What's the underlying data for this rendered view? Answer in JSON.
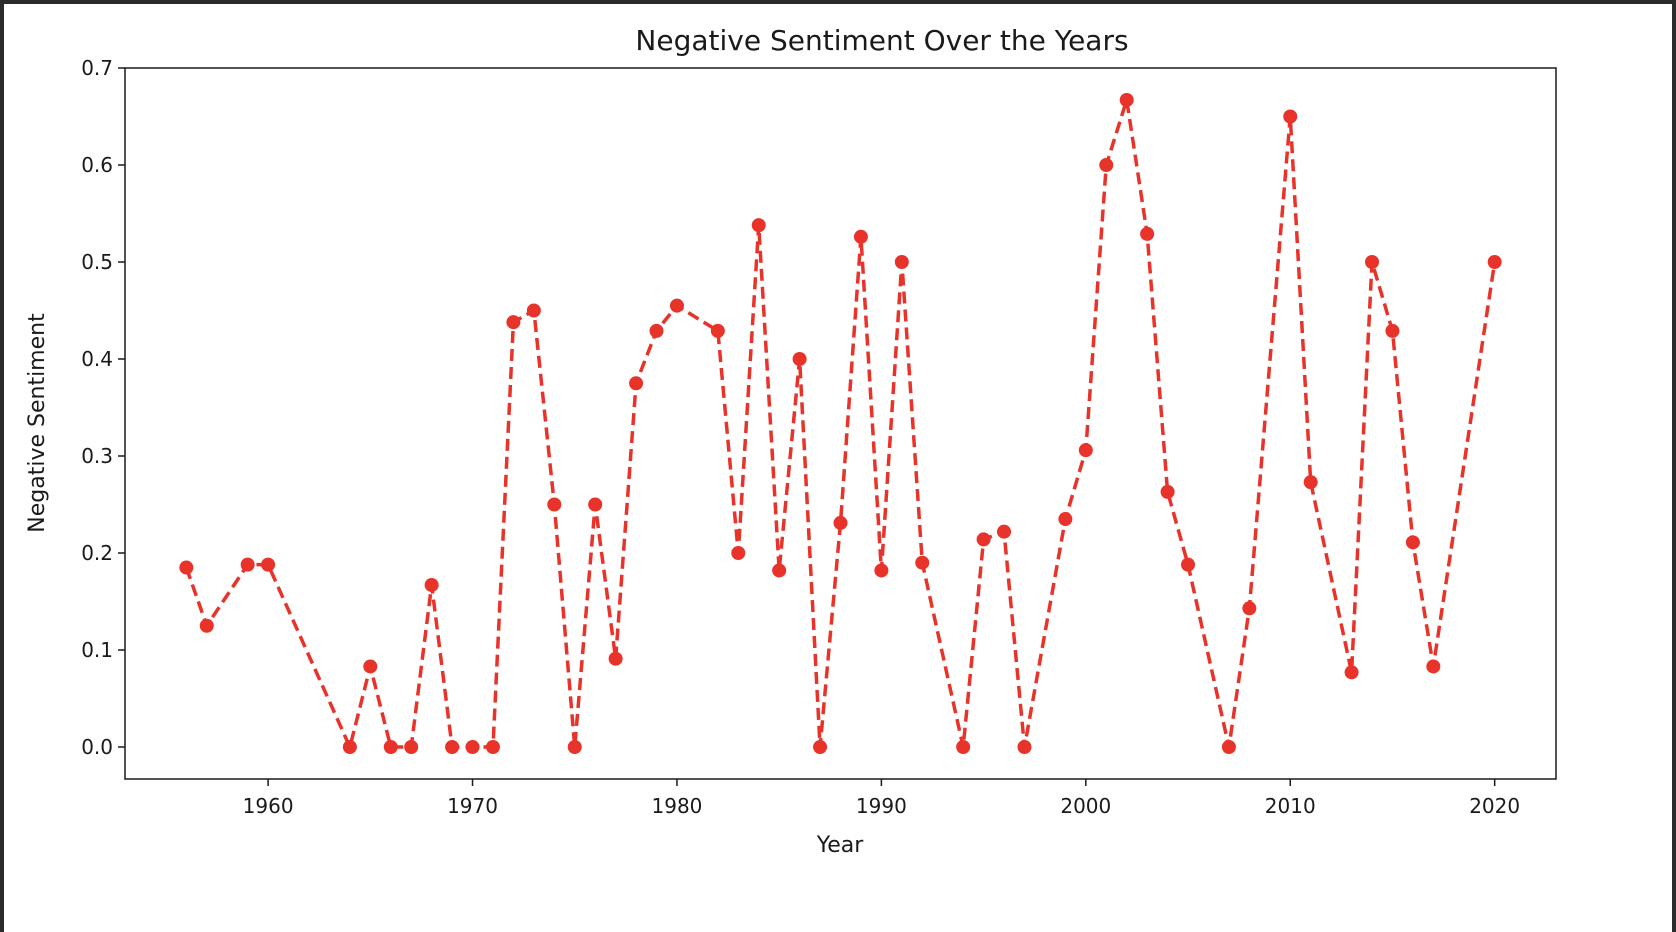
{
  "chart_data": {
    "type": "line",
    "title": "Negative Sentiment Over the Years",
    "xlabel": "Year",
    "ylabel": "Negative Sentiment",
    "xlim": [
      1953,
      2023
    ],
    "ylim": [
      -0.033,
      0.7
    ],
    "xticks": [
      1960,
      1970,
      1980,
      1990,
      2000,
      2010,
      2020
    ],
    "yticks": [
      0.0,
      0.1,
      0.2,
      0.3,
      0.4,
      0.5,
      0.6,
      0.7
    ],
    "grid": false,
    "line_style": "dashed",
    "marker": "circle",
    "color": "#e8332a",
    "series": [
      {
        "x": [
          1956,
          1957,
          1959,
          1960,
          1964,
          1965,
          1966,
          1967,
          1968,
          1969,
          1970,
          1971,
          1972,
          1973,
          1974,
          1975,
          1976,
          1977,
          1978,
          1979,
          1980,
          1982,
          1983,
          1984,
          1985,
          1986,
          1987,
          1988,
          1989,
          1990,
          1991,
          1992,
          1994,
          1995,
          1996,
          1997,
          1999,
          2000,
          2001,
          2002,
          2003,
          2004,
          2005,
          2007,
          2008,
          2010,
          2011,
          2013,
          2014,
          2015,
          2016,
          2017,
          2020
        ],
        "values": [
          0.185,
          0.125,
          0.188,
          0.188,
          0.0,
          0.083,
          0.0,
          0.0,
          0.167,
          0.0,
          0.0,
          0.0,
          0.438,
          0.45,
          0.25,
          0.0,
          0.25,
          0.091,
          0.375,
          0.429,
          0.455,
          0.429,
          0.2,
          0.538,
          0.182,
          0.4,
          0.0,
          0.231,
          0.526,
          0.182,
          0.5,
          0.19,
          0.0,
          0.214,
          0.222,
          0.0,
          0.235,
          0.306,
          0.6,
          0.667,
          0.529,
          0.263,
          0.188,
          0.0,
          0.143,
          0.65,
          0.273,
          0.077,
          0.5,
          0.429,
          0.211,
          0.083,
          0.5
        ]
      }
    ]
  }
}
